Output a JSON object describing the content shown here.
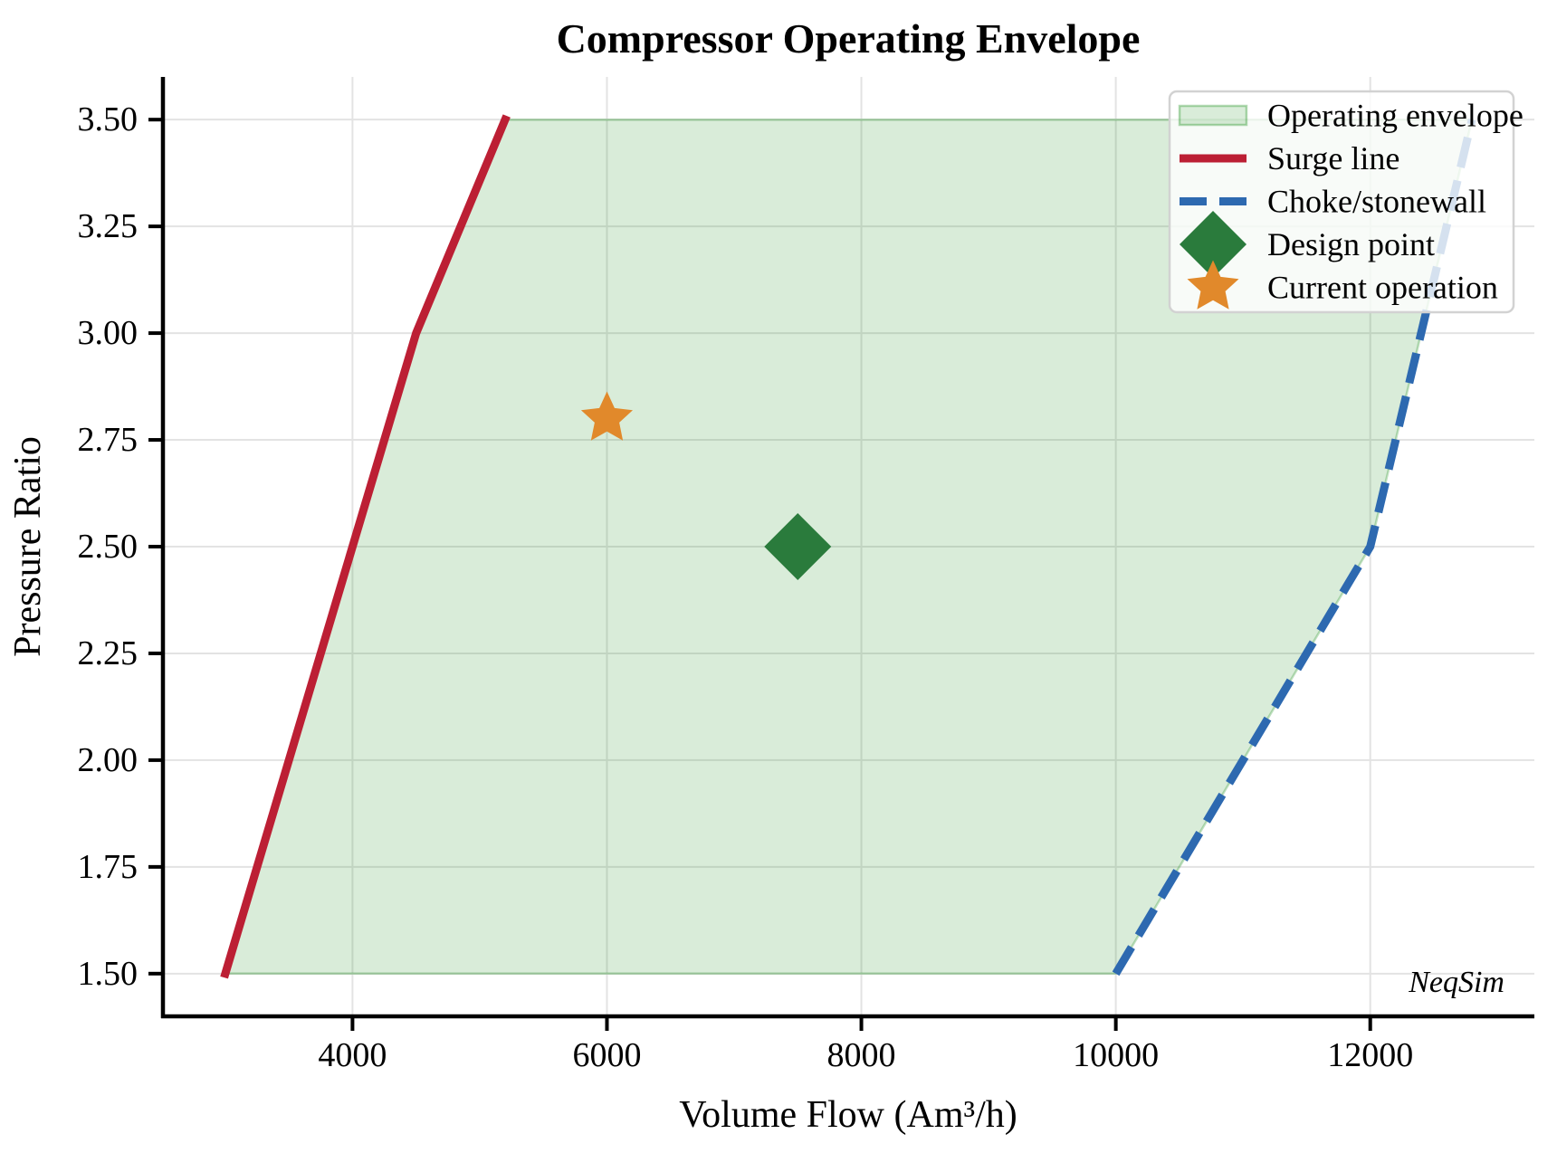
{
  "title": "Compressor Operating Envelope",
  "watermark": "NeqSim",
  "colors": {
    "surge_line": "#BC1F34",
    "choke_line": "#2D69B0",
    "envelope_base": "#008000",
    "design_point": "#2A7B3C",
    "current_operation": "#E1892B",
    "grid": "#E3E3E3",
    "axis": "#000000",
    "legend_border": "#D2D2D2",
    "watermark_color": "#CBCBCB"
  },
  "chart_data": {
    "type": "line",
    "title": "Compressor Operating Envelope",
    "xlabel": "Volume Flow (Am³/h)",
    "ylabel": "Pressure Ratio",
    "xlim": [
      2510,
      13290
    ],
    "ylim": [
      1.4,
      3.6
    ],
    "xticks": [
      4000,
      6000,
      8000,
      10000,
      12000
    ],
    "yticks": [
      1.5,
      1.75,
      2.0,
      2.25,
      2.5,
      2.75,
      3.0,
      3.25,
      3.5
    ],
    "grid": true,
    "legend_position": "upper right",
    "series": [
      {
        "name": "Operating envelope",
        "type": "area",
        "points": [
          [
            3000,
            1.5
          ],
          [
            4500,
            3.0
          ],
          [
            5200,
            3.5
          ],
          [
            12800,
            3.5
          ],
          [
            12000,
            2.5
          ],
          [
            10000,
            1.5
          ]
        ]
      },
      {
        "name": "Surge line",
        "type": "line",
        "style": "solid",
        "points": [
          [
            3000,
            1.5
          ],
          [
            4500,
            3.0
          ],
          [
            5200,
            3.5
          ]
        ]
      },
      {
        "name": "Choke/stonewall",
        "type": "line",
        "style": "dashed",
        "points": [
          [
            10000,
            1.5
          ],
          [
            12000,
            2.5
          ],
          [
            12800,
            3.5
          ]
        ]
      },
      {
        "name": "Design point",
        "type": "scatter",
        "marker": "diamond",
        "points": [
          [
            7500,
            2.5
          ]
        ]
      },
      {
        "name": "Current operation",
        "type": "scatter",
        "marker": "star",
        "points": [
          [
            6000,
            2.8
          ]
        ]
      }
    ],
    "legend": [
      "Operating envelope",
      "Surge line",
      "Choke/stonewall",
      "Design point",
      "Current operation"
    ]
  }
}
